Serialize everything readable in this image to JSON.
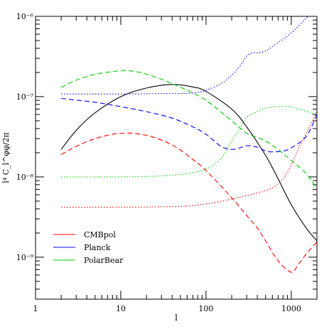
{
  "chart_data": {
    "type": "line",
    "title": "",
    "xlabel": "l",
    "ylabel": "l⁴ C_l^φφ/2π",
    "xscale": "log",
    "yscale": "log",
    "xlim": [
      1,
      2000
    ],
    "ylim": [
      3e-10,
      1e-06
    ],
    "grid": false,
    "legend_position": "bottom-left",
    "x_ticks": [
      {
        "value": 1,
        "label": "1"
      },
      {
        "value": 10,
        "label": "10"
      },
      {
        "value": 100,
        "label": "100"
      },
      {
        "value": 1000,
        "label": "1000"
      }
    ],
    "y_ticks": [
      {
        "value": 1e-09,
        "label": "10⁻⁹"
      },
      {
        "value": 1e-08,
        "label": "10⁻⁸"
      },
      {
        "value": 1e-07,
        "label": "10⁻⁷"
      },
      {
        "value": 1e-06,
        "label": "10⁻⁶"
      }
    ],
    "series": [
      {
        "color": "#000000",
        "style": "solid",
        "x": [
          2,
          3,
          5,
          10,
          20,
          40,
          70,
          100,
          200,
          300,
          500,
          700,
          1000,
          1500,
          2000
        ],
        "y": [
          2.2e-08,
          3.8e-08,
          6.3e-08,
          1e-07,
          1.28e-07,
          1.42e-07,
          1.32e-07,
          1.16e-07,
          7e-08,
          4.2e-08,
          1.85e-08,
          9.5e-09,
          4.5e-09,
          2.3e-09,
          1.6e-09
        ]
      },
      {
        "color": "#ff0000",
        "style": "dashed",
        "x": [
          2,
          3,
          5,
          10,
          20,
          40,
          70,
          100,
          200,
          300,
          400,
          500,
          700,
          1000,
          1200,
          1500,
          2000
        ],
        "y": [
          1.9e-08,
          2.4e-08,
          3e-08,
          3.5e-08,
          3.3e-08,
          2.5e-08,
          1.65e-08,
          1.2e-08,
          5.5e-09,
          3.3e-09,
          2.3e-09,
          1.6e-09,
          9e-10,
          6.5e-10,
          8e-10,
          1.1e-09,
          1.55e-09
        ]
      },
      {
        "color": "#ff0000",
        "style": "dotted",
        "x": [
          2,
          10,
          50,
          100,
          200,
          400,
          600,
          800,
          1000,
          1200,
          1500,
          2000
        ],
        "y": [
          4.2e-09,
          4.2e-09,
          4.3e-09,
          4.6e-09,
          5.3e-09,
          6.3e-09,
          7.3e-09,
          9.5e-09,
          1.4e-08,
          2.2e-08,
          3.5e-08,
          6.5e-08
        ]
      },
      {
        "color": "#0000ff",
        "style": "dashed",
        "x": [
          2,
          5,
          10,
          20,
          40,
          70,
          100,
          150,
          200,
          250,
          300,
          400,
          500,
          600,
          800,
          1000,
          1500,
          2000
        ],
        "y": [
          9.5e-08,
          8.5e-08,
          7.5e-08,
          6.5e-08,
          5.4e-08,
          4.2e-08,
          3.4e-08,
          2.4e-08,
          2.2e-08,
          2.3e-08,
          2.45e-08,
          2.35e-08,
          2.1e-08,
          2.05e-08,
          2.1e-08,
          2.3e-08,
          3.2e-08,
          6e-08
        ]
      },
      {
        "color": "#0000ff",
        "style": "dotted",
        "x": [
          2,
          10,
          30,
          60,
          80,
          100,
          150,
          200,
          250,
          300,
          350,
          400,
          500,
          600,
          800,
          1000,
          1200,
          1500,
          1800,
          2000
        ],
        "y": [
          1.08e-07,
          1.08e-07,
          1.09e-07,
          1.1e-07,
          1.13e-07,
          1.2e-07,
          1.45e-07,
          1.85e-07,
          2.4e-07,
          3.2e-07,
          3.5e-07,
          3.5e-07,
          3.7e-07,
          4.2e-07,
          5.2e-07,
          6.2e-07,
          7.5e-07,
          9.5e-07,
          1.15e-06,
          1.3e-06
        ]
      },
      {
        "color": "#00cc00",
        "style": "dashed",
        "x": [
          2,
          3,
          5,
          10,
          15,
          20,
          30,
          40,
          60,
          100,
          200,
          300,
          400,
          500,
          700,
          1000,
          1500,
          2000
        ],
        "y": [
          1.3e-07,
          1.6e-07,
          1.9e-07,
          2.1e-07,
          2.05e-07,
          1.9e-07,
          1.65e-07,
          1.45e-07,
          1.2e-07,
          9e-08,
          5e-08,
          3.5e-08,
          3.1e-08,
          2.8e-08,
          2.2e-08,
          1.6e-08,
          1.1e-08,
          7e-09
        ]
      },
      {
        "color": "#00cc00",
        "style": "dotted",
        "x": [
          2,
          10,
          30,
          60,
          100,
          150,
          200,
          250,
          300,
          400,
          500,
          700,
          1000,
          1200,
          1500,
          1800,
          2000
        ],
        "y": [
          1e-08,
          1e-08,
          1.03e-08,
          1.1e-08,
          1.25e-08,
          1.7e-08,
          2.8e-08,
          4e-08,
          5.5e-08,
          6.5e-08,
          7.2e-08,
          7.5e-08,
          7.5e-08,
          7e-08,
          6.6e-08,
          6.2e-08,
          6e-08
        ]
      }
    ],
    "legend": [
      {
        "name": "CMBpol",
        "color": "#ff0000"
      },
      {
        "name": "Planck",
        "color": "#0000ff"
      },
      {
        "name": "PolarBear",
        "color": "#00cc00"
      }
    ]
  }
}
